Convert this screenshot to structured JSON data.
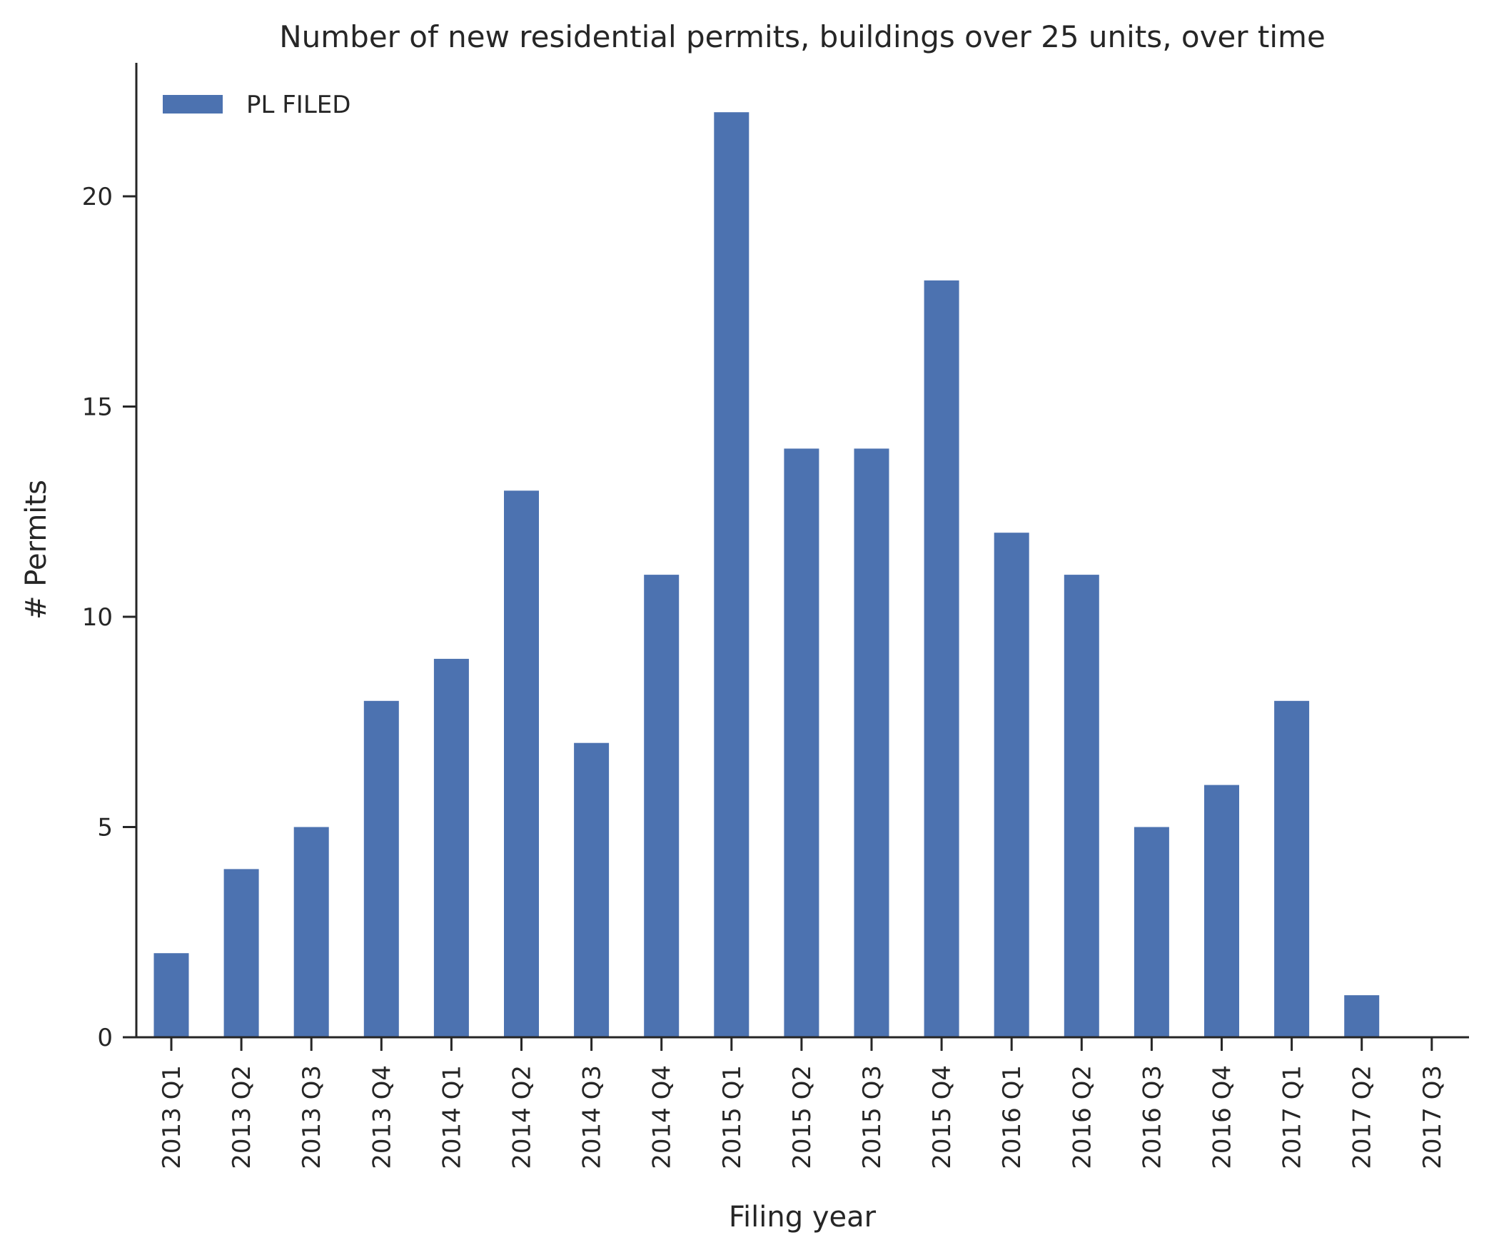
{
  "chart_data": {
    "type": "bar",
    "title": "Number of new residential permits, buildings over 25 units, over time",
    "xlabel": "Filing year",
    "ylabel": "# Permits",
    "categories": [
      "2013 Q1",
      "2013 Q2",
      "2013 Q3",
      "2013 Q4",
      "2014 Q1",
      "2014 Q2",
      "2014 Q3",
      "2014 Q4",
      "2015 Q1",
      "2015 Q2",
      "2015 Q3",
      "2015 Q4",
      "2016 Q1",
      "2016 Q2",
      "2016 Q3",
      "2016 Q4",
      "2017 Q1",
      "2017 Q2",
      "2017 Q3"
    ],
    "series": [
      {
        "name": "PL FILED",
        "values": [
          2,
          4,
          5,
          8,
          9,
          13,
          7,
          11,
          22,
          14,
          14,
          18,
          12,
          11,
          5,
          6,
          8,
          1,
          0
        ],
        "color": "#4c72b0"
      }
    ],
    "ylim": [
      0,
      23.1
    ],
    "yticks": [
      0,
      5,
      10,
      15,
      20
    ],
    "grid": false,
    "legend": "top-left"
  }
}
